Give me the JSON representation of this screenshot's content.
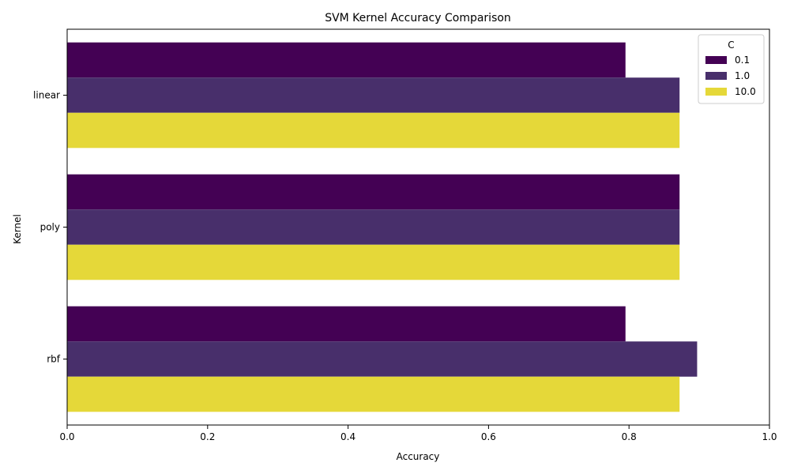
{
  "chart_data": {
    "type": "bar",
    "orientation": "horizontal",
    "title": "SVM Kernel Accuracy Comparison",
    "xlabel": "Accuracy",
    "ylabel": "Kernel",
    "xlim": [
      0,
      1.0
    ],
    "xticks": [
      "0.0",
      "0.2",
      "0.4",
      "0.6",
      "0.8",
      "1.0"
    ],
    "categories": [
      "linear",
      "poly",
      "rbf"
    ],
    "series": [
      {
        "name": "0.1",
        "values": [
          0.795,
          0.872,
          0.795
        ],
        "color": "#440154"
      },
      {
        "name": "1.0",
        "values": [
          0.872,
          0.872,
          0.897
        ],
        "color": "#482f6b"
      },
      {
        "name": "10.0",
        "values": [
          0.872,
          0.872,
          0.872
        ],
        "color": "#e5d839"
      }
    ],
    "legend": {
      "title": "C",
      "placement": "top-right"
    },
    "grid": false
  }
}
